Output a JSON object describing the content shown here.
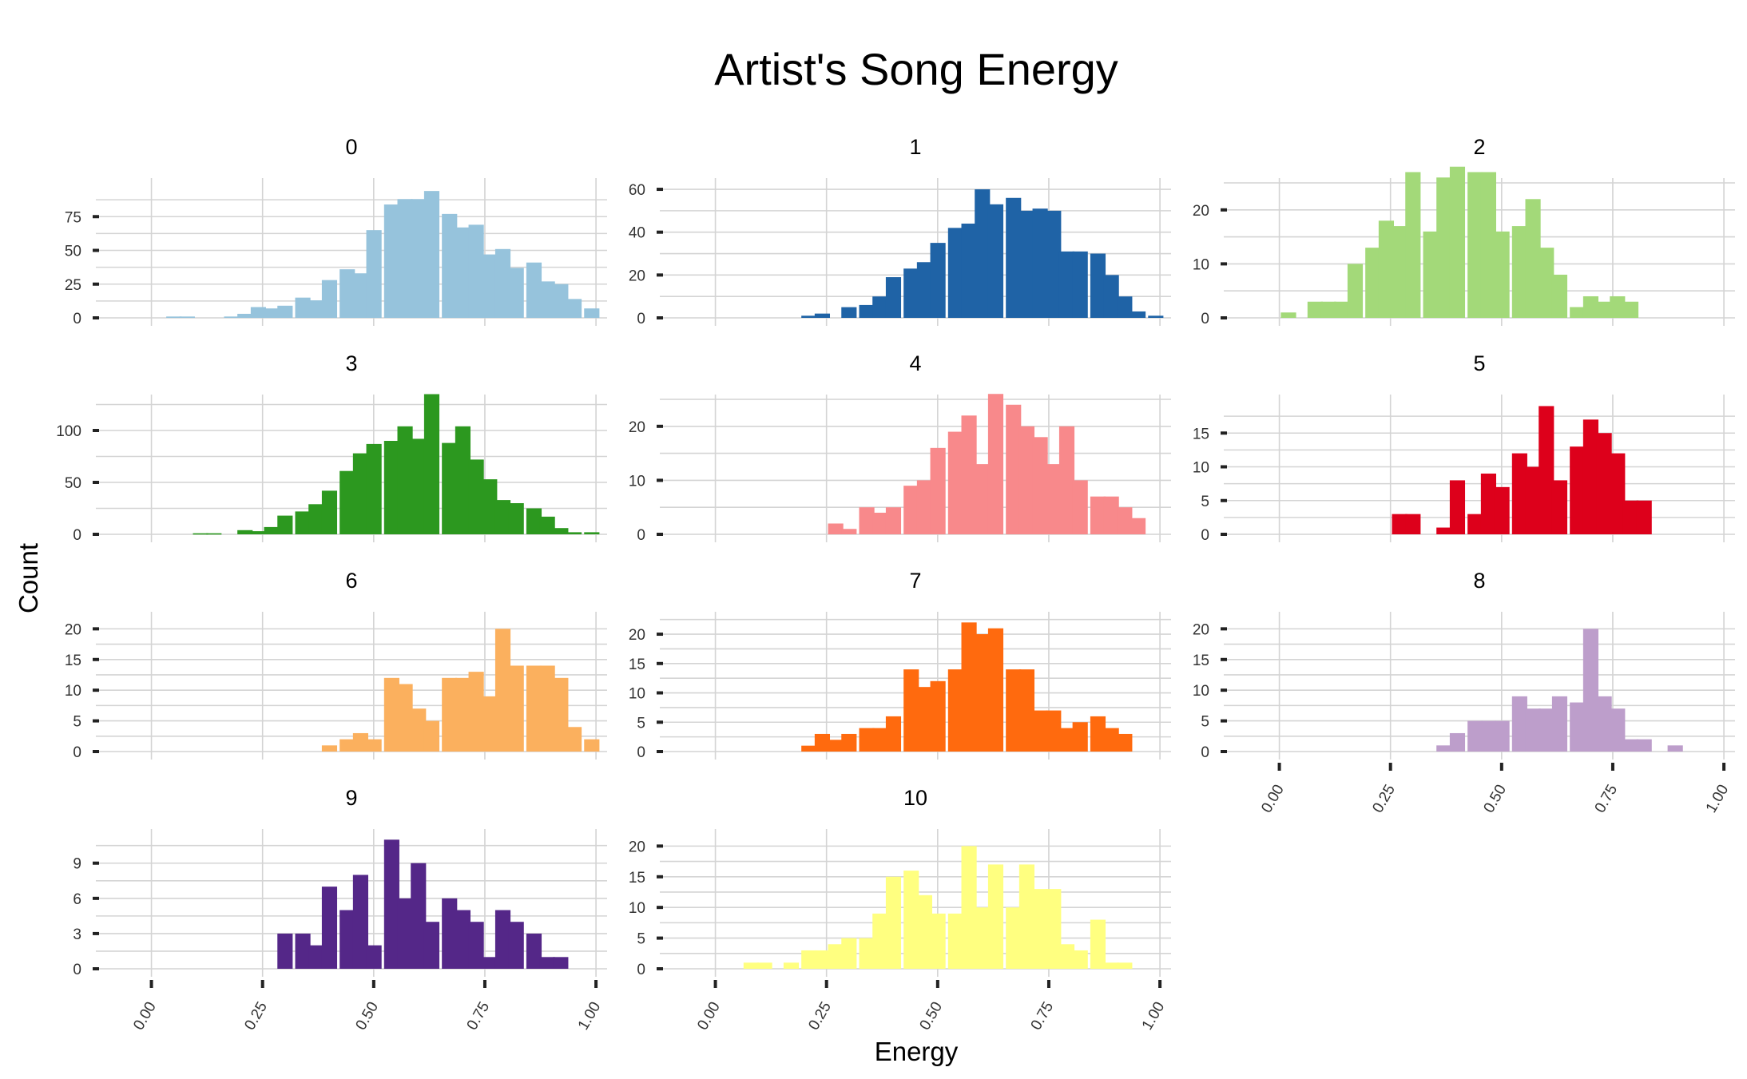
{
  "chart_data": {
    "type": "bar",
    "title": "Artist's Song Energy",
    "xlabel": "Energy",
    "ylabel": "Count",
    "layout": {
      "columns": 3,
      "rows": 4
    },
    "xlim": [
      0,
      1
    ],
    "bin_width": 0.03333,
    "x_ticks": [
      "0.00",
      "0.25",
      "0.50",
      "0.75",
      "1.00"
    ],
    "grid": true,
    "panels": [
      {
        "name": "0",
        "color": "#96c3dc",
        "y_ticks": [
          0,
          25,
          50,
          75
        ],
        "ymax": 100,
        "bars": [
          [
            0.05,
            1
          ],
          [
            0.08,
            1
          ],
          [
            0.18,
            1
          ],
          [
            0.21,
            3
          ],
          [
            0.24,
            8
          ],
          [
            0.27,
            7
          ],
          [
            0.3,
            9
          ],
          [
            0.34,
            15
          ],
          [
            0.37,
            13
          ],
          [
            0.4,
            28
          ],
          [
            0.44,
            36
          ],
          [
            0.47,
            33
          ],
          [
            0.5,
            65
          ],
          [
            0.54,
            84
          ],
          [
            0.57,
            88
          ],
          [
            0.6,
            88
          ],
          [
            0.63,
            94
          ],
          [
            0.67,
            77
          ],
          [
            0.7,
            67
          ],
          [
            0.73,
            69
          ],
          [
            0.76,
            47
          ],
          [
            0.79,
            51
          ],
          [
            0.82,
            37
          ],
          [
            0.86,
            41
          ],
          [
            0.89,
            27
          ],
          [
            0.92,
            25
          ],
          [
            0.95,
            14
          ],
          [
            0.99,
            7
          ]
        ]
      },
      {
        "name": "1",
        "color": "#1f63a6",
        "y_ticks": [
          0,
          20,
          40,
          60
        ],
        "ymax": 63,
        "bars": [
          [
            0.21,
            1
          ],
          [
            0.24,
            2
          ],
          [
            0.3,
            5
          ],
          [
            0.34,
            6
          ],
          [
            0.37,
            10
          ],
          [
            0.4,
            19
          ],
          [
            0.44,
            23
          ],
          [
            0.47,
            26
          ],
          [
            0.5,
            35
          ],
          [
            0.54,
            42
          ],
          [
            0.57,
            44
          ],
          [
            0.6,
            60
          ],
          [
            0.63,
            53
          ],
          [
            0.67,
            56
          ],
          [
            0.7,
            50
          ],
          [
            0.73,
            51
          ],
          [
            0.76,
            50
          ],
          [
            0.79,
            31
          ],
          [
            0.82,
            31
          ],
          [
            0.86,
            30
          ],
          [
            0.89,
            20
          ],
          [
            0.92,
            10
          ],
          [
            0.95,
            3
          ],
          [
            0.99,
            1
          ]
        ]
      },
      {
        "name": "2",
        "color": "#a3d979",
        "y_ticks": [
          0,
          10,
          20
        ],
        "ymax": 25,
        "bars": [
          [
            0.02,
            1
          ],
          [
            0.08,
            3
          ],
          [
            0.11,
            3
          ],
          [
            0.14,
            3
          ],
          [
            0.17,
            10
          ],
          [
            0.21,
            13
          ],
          [
            0.24,
            18
          ],
          [
            0.27,
            17
          ],
          [
            0.3,
            27
          ],
          [
            0.34,
            16
          ],
          [
            0.37,
            26
          ],
          [
            0.4,
            28
          ],
          [
            0.44,
            27
          ],
          [
            0.47,
            27
          ],
          [
            0.5,
            16
          ],
          [
            0.54,
            17
          ],
          [
            0.57,
            22
          ],
          [
            0.6,
            13
          ],
          [
            0.63,
            8
          ],
          [
            0.67,
            2
          ],
          [
            0.7,
            4
          ],
          [
            0.73,
            3
          ],
          [
            0.76,
            4
          ],
          [
            0.79,
            3
          ]
        ]
      },
      {
        "name": "3",
        "color": "#2c981f",
        "y_ticks": [
          0,
          50,
          100
        ],
        "ymax": 130,
        "bars": [
          [
            0.11,
            1
          ],
          [
            0.14,
            1
          ],
          [
            0.21,
            4
          ],
          [
            0.24,
            3
          ],
          [
            0.27,
            7
          ],
          [
            0.3,
            18
          ],
          [
            0.34,
            22
          ],
          [
            0.37,
            29
          ],
          [
            0.4,
            42
          ],
          [
            0.44,
            61
          ],
          [
            0.47,
            78
          ],
          [
            0.5,
            87
          ],
          [
            0.54,
            90
          ],
          [
            0.57,
            104
          ],
          [
            0.6,
            92
          ],
          [
            0.63,
            135
          ],
          [
            0.67,
            88
          ],
          [
            0.7,
            104
          ],
          [
            0.73,
            72
          ],
          [
            0.76,
            53
          ],
          [
            0.79,
            33
          ],
          [
            0.82,
            30
          ],
          [
            0.86,
            25
          ],
          [
            0.89,
            17
          ],
          [
            0.92,
            6
          ],
          [
            0.95,
            2
          ],
          [
            0.99,
            2
          ]
        ]
      },
      {
        "name": "4",
        "color": "#f8898b",
        "y_ticks": [
          0,
          10,
          20
        ],
        "ymax": 25,
        "bars": [
          [
            0.27,
            2
          ],
          [
            0.3,
            1
          ],
          [
            0.34,
            5
          ],
          [
            0.37,
            4
          ],
          [
            0.4,
            5
          ],
          [
            0.44,
            9
          ],
          [
            0.47,
            10
          ],
          [
            0.5,
            16
          ],
          [
            0.54,
            19
          ],
          [
            0.57,
            22
          ],
          [
            0.6,
            13
          ],
          [
            0.63,
            26
          ],
          [
            0.67,
            24
          ],
          [
            0.7,
            20
          ],
          [
            0.73,
            18
          ],
          [
            0.76,
            13
          ],
          [
            0.79,
            20
          ],
          [
            0.82,
            10
          ],
          [
            0.86,
            7
          ],
          [
            0.89,
            7
          ],
          [
            0.92,
            5
          ],
          [
            0.95,
            3
          ]
        ]
      },
      {
        "name": "5",
        "color": "#dd001b",
        "y_ticks": [
          0,
          5,
          10,
          15
        ],
        "ymax": 20,
        "bars": [
          [
            0.27,
            3
          ],
          [
            0.3,
            3
          ],
          [
            0.37,
            1
          ],
          [
            0.4,
            8
          ],
          [
            0.44,
            3
          ],
          [
            0.47,
            9
          ],
          [
            0.5,
            7
          ],
          [
            0.54,
            12
          ],
          [
            0.57,
            10
          ],
          [
            0.6,
            19
          ],
          [
            0.63,
            8
          ],
          [
            0.67,
            13
          ],
          [
            0.7,
            17
          ],
          [
            0.73,
            15
          ],
          [
            0.76,
            12
          ],
          [
            0.79,
            5
          ],
          [
            0.82,
            5
          ]
        ]
      },
      {
        "name": "6",
        "color": "#fbb05e",
        "y_ticks": [
          0,
          5,
          10,
          15,
          20
        ],
        "ymax": 22,
        "bars": [
          [
            0.4,
            1
          ],
          [
            0.44,
            2
          ],
          [
            0.47,
            3
          ],
          [
            0.5,
            2
          ],
          [
            0.54,
            12
          ],
          [
            0.57,
            11
          ],
          [
            0.6,
            7
          ],
          [
            0.63,
            5
          ],
          [
            0.67,
            12
          ],
          [
            0.7,
            12
          ],
          [
            0.73,
            13
          ],
          [
            0.76,
            9
          ],
          [
            0.79,
            20
          ],
          [
            0.82,
            14
          ],
          [
            0.86,
            14
          ],
          [
            0.89,
            14
          ],
          [
            0.92,
            12
          ],
          [
            0.95,
            4
          ],
          [
            0.99,
            2
          ]
        ]
      },
      {
        "name": "7",
        "color": "#ff6a0e",
        "y_ticks": [
          0,
          5,
          10,
          15,
          20
        ],
        "ymax": 23,
        "bars": [
          [
            0.21,
            1
          ],
          [
            0.24,
            3
          ],
          [
            0.27,
            2
          ],
          [
            0.3,
            3
          ],
          [
            0.34,
            4
          ],
          [
            0.37,
            4
          ],
          [
            0.4,
            6
          ],
          [
            0.44,
            14
          ],
          [
            0.47,
            11
          ],
          [
            0.5,
            12
          ],
          [
            0.54,
            14
          ],
          [
            0.57,
            22
          ],
          [
            0.6,
            20
          ],
          [
            0.63,
            21
          ],
          [
            0.67,
            14
          ],
          [
            0.7,
            14
          ],
          [
            0.73,
            7
          ],
          [
            0.76,
            7
          ],
          [
            0.79,
            4
          ],
          [
            0.82,
            5
          ],
          [
            0.86,
            6
          ],
          [
            0.89,
            4
          ],
          [
            0.92,
            3
          ]
        ]
      },
      {
        "name": "8",
        "color": "#bd9ecb",
        "y_ticks": [
          0,
          5,
          10,
          15,
          20
        ],
        "ymax": 22,
        "bars": [
          [
            0.37,
            1
          ],
          [
            0.4,
            3
          ],
          [
            0.44,
            5
          ],
          [
            0.47,
            5
          ],
          [
            0.5,
            5
          ],
          [
            0.54,
            9
          ],
          [
            0.57,
            7
          ],
          [
            0.6,
            7
          ],
          [
            0.63,
            9
          ],
          [
            0.67,
            8
          ],
          [
            0.7,
            20
          ],
          [
            0.73,
            9
          ],
          [
            0.76,
            7
          ],
          [
            0.79,
            2
          ],
          [
            0.82,
            2
          ],
          [
            0.89,
            1
          ]
        ]
      },
      {
        "name": "9",
        "color": "#542788",
        "y_ticks": [
          0,
          3,
          6,
          9
        ],
        "ymax": 11.5,
        "bars": [
          [
            0.3,
            3
          ],
          [
            0.34,
            3
          ],
          [
            0.37,
            2
          ],
          [
            0.4,
            7
          ],
          [
            0.44,
            5
          ],
          [
            0.47,
            8
          ],
          [
            0.5,
            2
          ],
          [
            0.54,
            11
          ],
          [
            0.57,
            6
          ],
          [
            0.6,
            9
          ],
          [
            0.63,
            4
          ],
          [
            0.67,
            6
          ],
          [
            0.7,
            5
          ],
          [
            0.73,
            4
          ],
          [
            0.76,
            1
          ],
          [
            0.79,
            5
          ],
          [
            0.82,
            4
          ],
          [
            0.86,
            3
          ],
          [
            0.89,
            1
          ],
          [
            0.92,
            1
          ]
        ]
      },
      {
        "name": "10",
        "color": "#ffff80",
        "y_ticks": [
          0,
          5,
          10,
          15,
          20
        ],
        "ymax": 22,
        "bars": [
          [
            0.08,
            1
          ],
          [
            0.11,
            1
          ],
          [
            0.17,
            1
          ],
          [
            0.21,
            3
          ],
          [
            0.24,
            3
          ],
          [
            0.27,
            4
          ],
          [
            0.3,
            5
          ],
          [
            0.34,
            5
          ],
          [
            0.37,
            9
          ],
          [
            0.4,
            15
          ],
          [
            0.44,
            16
          ],
          [
            0.47,
            12
          ],
          [
            0.5,
            9
          ],
          [
            0.54,
            9
          ],
          [
            0.57,
            20
          ],
          [
            0.6,
            10
          ],
          [
            0.63,
            17
          ],
          [
            0.67,
            10
          ],
          [
            0.7,
            17
          ],
          [
            0.73,
            13
          ],
          [
            0.76,
            13
          ],
          [
            0.79,
            4
          ],
          [
            0.82,
            3
          ],
          [
            0.86,
            8
          ],
          [
            0.89,
            1
          ],
          [
            0.92,
            1
          ]
        ]
      }
    ]
  }
}
